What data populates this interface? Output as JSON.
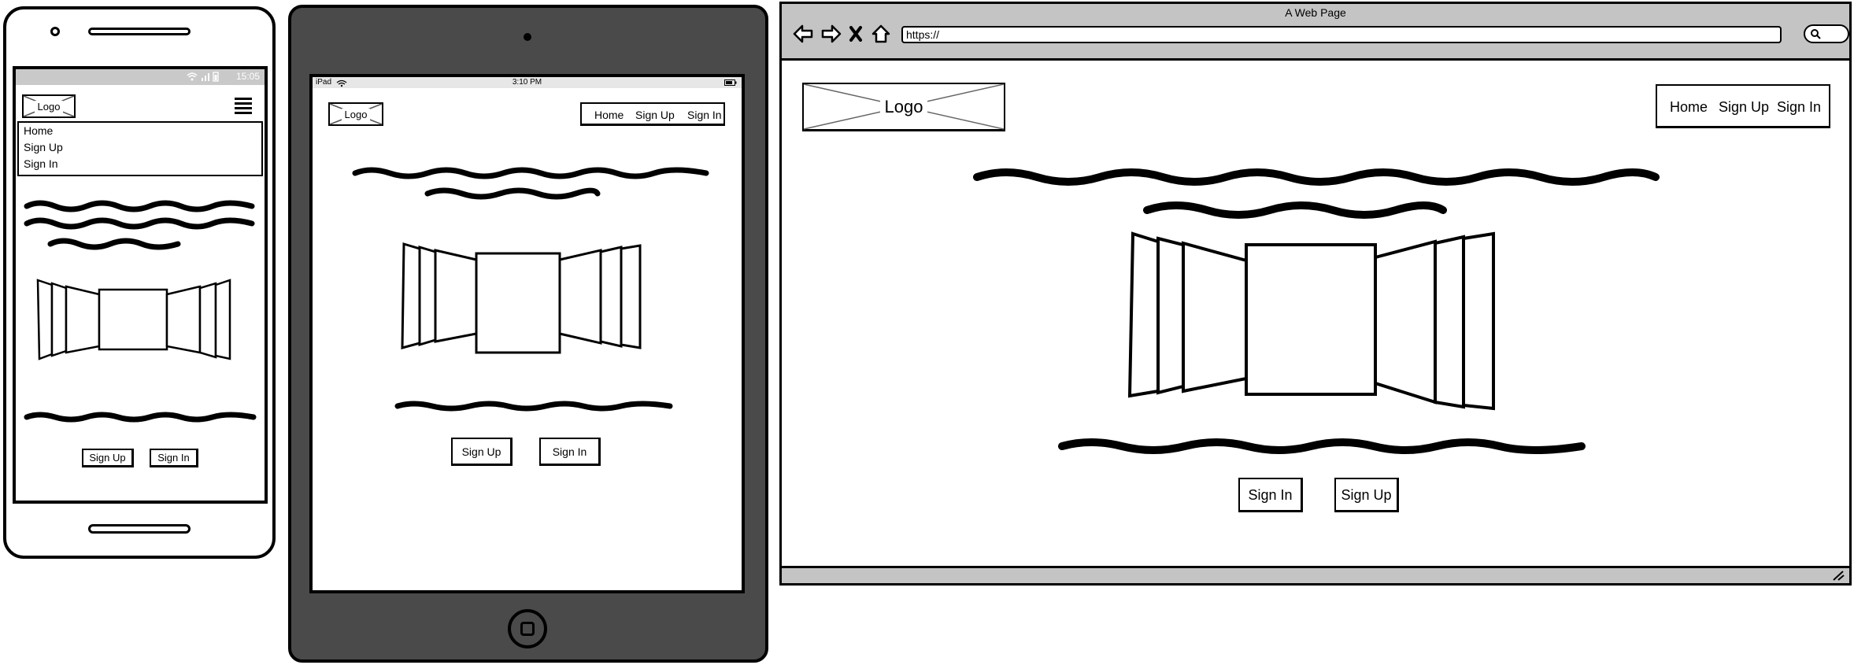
{
  "phone": {
    "status_time": "15:05",
    "logo_label": "Logo",
    "menu_items": [
      "Home",
      "Sign Up",
      "Sign In"
    ],
    "buttons": {
      "sign_up": "Sign Up",
      "sign_in": "Sign In"
    }
  },
  "tablet": {
    "status_device": "iPad",
    "status_time": "3:10 PM",
    "logo_label": "Logo",
    "nav_items": [
      "Home",
      "Sign Up",
      "Sign In"
    ],
    "buttons": {
      "sign_up": "Sign Up",
      "sign_in": "Sign In"
    }
  },
  "browser": {
    "window_title": "A Web Page",
    "url": "https://",
    "logo_label": "Logo",
    "nav_items": [
      "Home",
      "Sign Up",
      "Sign In"
    ],
    "buttons": {
      "sign_in": "Sign In",
      "sign_up": "Sign Up"
    }
  },
  "icons": [
    "wifi-icon",
    "signal-icon",
    "battery-icon",
    "hamburger-menu-icon",
    "back-arrow-icon",
    "forward-arrow-icon",
    "close-icon",
    "home-icon",
    "search-icon",
    "resize-grip-icon",
    "tablet-home-button-icon"
  ],
  "colors": {
    "chrome_gray": "#c4c4c4",
    "tablet_body": "#4a4a4a",
    "status_gray": "#c9c9c9"
  }
}
